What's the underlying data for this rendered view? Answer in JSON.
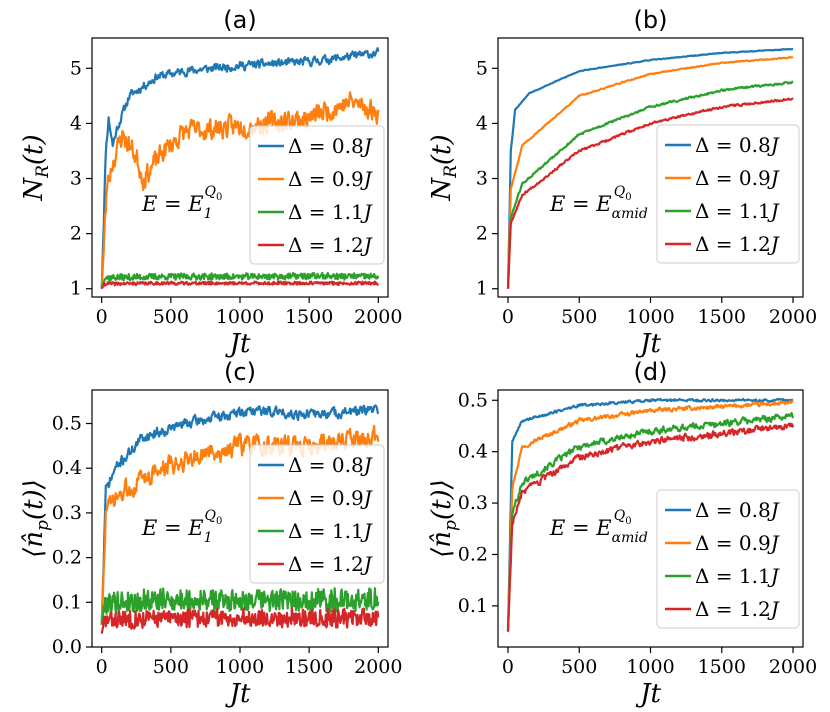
{
  "figure": {
    "panels": [
      "a",
      "b",
      "c",
      "d"
    ]
  },
  "chart_data": [
    {
      "id": "a",
      "type": "line",
      "title": "(a)",
      "xlabel": "Jt",
      "ylabel": "N_R(t)",
      "xlim": [
        -70,
        2070
      ],
      "ylim": [
        0.85,
        5.55
      ],
      "xticks": [
        0,
        500,
        1000,
        1500,
        2000
      ],
      "yticks": [
        1,
        2,
        3,
        4,
        5
      ],
      "annotation": {
        "base": "E = E",
        "sub": "1",
        "sup": "Q",
        "supsub": "0"
      },
      "legend_position": "right",
      "series": [
        {
          "name": "Δ = 0.8J",
          "color": "#1f77b4",
          "kind": "rise",
          "from": 1.0,
          "to": 5.3,
          "rate": 120,
          "noise": 0.12,
          "seed": 11,
          "points": [
            [
              0,
              1.0
            ],
            [
              30,
              3.5
            ],
            [
              50,
              4.1
            ],
            [
              80,
              3.6
            ],
            [
              110,
              3.9
            ],
            [
              200,
              4.5
            ],
            [
              400,
              4.85
            ],
            [
              600,
              4.95
            ],
            [
              1000,
              5.05
            ],
            [
              1500,
              5.12
            ],
            [
              2000,
              5.28
            ]
          ]
        },
        {
          "name": "Δ = 0.9J",
          "color": "#ff7f0e",
          "kind": "rise",
          "from": 1.0,
          "to": 4.2,
          "rate": 180,
          "noise": 0.3,
          "seed": 23,
          "points": [
            [
              0,
              1.0
            ],
            [
              40,
              2.9
            ],
            [
              80,
              3.3
            ],
            [
              150,
              3.8
            ],
            [
              250,
              3.4
            ],
            [
              300,
              3.0
            ],
            [
              450,
              3.5
            ],
            [
              600,
              3.85
            ],
            [
              1000,
              3.95
            ],
            [
              1500,
              4.1
            ],
            [
              1800,
              4.4
            ],
            [
              2000,
              4.2
            ]
          ]
        },
        {
          "name": "Δ = 1.1J",
          "color": "#2ca02c",
          "kind": "flat",
          "from": 1.0,
          "to": 1.22,
          "rate": 15,
          "noise": 0.05,
          "seed": 37,
          "points": [
            [
              0,
              1.0
            ],
            [
              20,
              1.2
            ],
            [
              500,
              1.22
            ],
            [
              1000,
              1.22
            ],
            [
              1500,
              1.23
            ],
            [
              2000,
              1.22
            ]
          ]
        },
        {
          "name": "Δ = 1.2J",
          "color": "#d62728",
          "kind": "flat",
          "from": 1.0,
          "to": 1.1,
          "rate": 15,
          "noise": 0.025,
          "seed": 41,
          "points": [
            [
              0,
              1.0
            ],
            [
              20,
              1.09
            ],
            [
              500,
              1.1
            ],
            [
              1000,
              1.1
            ],
            [
              1500,
              1.1
            ],
            [
              2000,
              1.1
            ]
          ]
        }
      ]
    },
    {
      "id": "b",
      "type": "line",
      "title": "(b)",
      "xlabel": "Jt",
      "ylabel": "N_R(t)",
      "xlim": [
        -70,
        2070
      ],
      "ylim": [
        0.85,
        5.55
      ],
      "xticks": [
        0,
        500,
        1000,
        1500,
        2000
      ],
      "yticks": [
        1,
        2,
        3,
        4,
        5
      ],
      "annotation": {
        "base": "E = E",
        "sub": "α_mid",
        "sup": "Q",
        "supsub": "0"
      },
      "legend_position": "right",
      "series": [
        {
          "name": "Δ = 0.8J",
          "color": "#1f77b4",
          "kind": "sqrt",
          "from": 1.0,
          "to": 5.35,
          "rate": 60,
          "noise": 0.01,
          "seed": 53,
          "points": [
            [
              0,
              1.0
            ],
            [
              20,
              3.5
            ],
            [
              50,
              4.25
            ],
            [
              150,
              4.55
            ],
            [
              500,
              4.95
            ],
            [
              1000,
              5.15
            ],
            [
              1500,
              5.28
            ],
            [
              2000,
              5.35
            ]
          ]
        },
        {
          "name": "Δ = 0.9J",
          "color": "#ff7f0e",
          "kind": "sqrt",
          "from": 1.0,
          "to": 5.2,
          "rate": 220,
          "noise": 0.015,
          "seed": 59,
          "points": [
            [
              0,
              1.0
            ],
            [
              20,
              2.8
            ],
            [
              100,
              3.6
            ],
            [
              500,
              4.5
            ],
            [
              1000,
              4.9
            ],
            [
              1500,
              5.1
            ],
            [
              2000,
              5.2
            ]
          ]
        },
        {
          "name": "Δ = 1.1J",
          "color": "#2ca02c",
          "kind": "sqrt",
          "from": 1.0,
          "to": 4.75,
          "rate": 600,
          "noise": 0.03,
          "seed": 61,
          "points": [
            [
              0,
              1.0
            ],
            [
              20,
              2.3
            ],
            [
              100,
              2.9
            ],
            [
              500,
              3.8
            ],
            [
              1000,
              4.3
            ],
            [
              1500,
              4.6
            ],
            [
              2000,
              4.75
            ]
          ]
        },
        {
          "name": "Δ = 1.2J",
          "color": "#d62728",
          "kind": "sqrt",
          "from": 1.0,
          "to": 4.45,
          "rate": 800,
          "noise": 0.03,
          "seed": 67,
          "points": [
            [
              0,
              1.0
            ],
            [
              20,
              2.2
            ],
            [
              100,
              2.7
            ],
            [
              500,
              3.5
            ],
            [
              1000,
              4.0
            ],
            [
              1500,
              4.3
            ],
            [
              2000,
              4.45
            ]
          ]
        }
      ]
    },
    {
      "id": "c",
      "type": "line",
      "title": "(c)",
      "xlabel": "Jt",
      "ylabel": "⟨n̂_p(t)⟩",
      "xlim": [
        -70,
        2070
      ],
      "ylim": [
        0.0,
        0.575
      ],
      "xticks": [
        0,
        500,
        1000,
        1500,
        2000
      ],
      "yticks": [
        0.0,
        0.1,
        0.2,
        0.3,
        0.4,
        0.5
      ],
      "annotation": {
        "base": "E = E",
        "sub": "1",
        "sup": "Q",
        "supsub": "0"
      },
      "legend_position": "right",
      "series": [
        {
          "name": "Δ = 0.8J",
          "color": "#1f77b4",
          "kind": "rise",
          "from": 0.05,
          "to": 0.53,
          "rate": 180,
          "noise": 0.018,
          "seed": 71,
          "points": [
            [
              0,
              0.05
            ],
            [
              30,
              0.35
            ],
            [
              100,
              0.4
            ],
            [
              300,
              0.47
            ],
            [
              600,
              0.5
            ],
            [
              1100,
              0.53
            ],
            [
              1500,
              0.52
            ],
            [
              2000,
              0.53
            ]
          ]
        },
        {
          "name": "Δ = 0.9J",
          "color": "#ff7f0e",
          "kind": "rise",
          "from": 0.05,
          "to": 0.48,
          "rate": 250,
          "noise": 0.035,
          "seed": 73,
          "points": [
            [
              0,
              0.05
            ],
            [
              30,
              0.3
            ],
            [
              100,
              0.33
            ],
            [
              300,
              0.38
            ],
            [
              600,
              0.42
            ],
            [
              1000,
              0.45
            ],
            [
              1500,
              0.45
            ],
            [
              2000,
              0.47
            ]
          ]
        },
        {
          "name": "Δ = 1.1J",
          "color": "#2ca02c",
          "kind": "flat",
          "from": 0.05,
          "to": 0.105,
          "rate": 10,
          "noise": 0.022,
          "seed": 79,
          "points": [
            [
              0,
              0.05
            ],
            [
              20,
              0.1
            ],
            [
              500,
              0.105
            ],
            [
              1000,
              0.105
            ],
            [
              1500,
              0.105
            ],
            [
              2000,
              0.105
            ]
          ]
        },
        {
          "name": "Δ = 1.2J",
          "color": "#d62728",
          "kind": "flat",
          "from": 0.03,
          "to": 0.065,
          "rate": 10,
          "noise": 0.018,
          "seed": 83,
          "points": [
            [
              0,
              0.03
            ],
            [
              20,
              0.06
            ],
            [
              500,
              0.065
            ],
            [
              1000,
              0.065
            ],
            [
              1500,
              0.065
            ],
            [
              2000,
              0.065
            ]
          ]
        }
      ]
    },
    {
      "id": "d",
      "type": "line",
      "title": "(d)",
      "xlabel": "Jt",
      "ylabel": "⟨n̂_p(t)⟩",
      "xlim": [
        -70,
        2070
      ],
      "ylim": [
        0.02,
        0.52
      ],
      "xticks": [
        0,
        500,
        1000,
        1500,
        2000
      ],
      "yticks": [
        0.1,
        0.2,
        0.3,
        0.4,
        0.5
      ],
      "annotation": {
        "base": "E = E",
        "sub": "α_mid",
        "sup": "Q",
        "supsub": "0"
      },
      "legend_position": "right",
      "series": [
        {
          "name": "Δ = 0.8J",
          "color": "#1f77b4",
          "kind": "sqrt",
          "from": 0.05,
          "to": 0.5,
          "rate": 40,
          "noise": 0.004,
          "seed": 89,
          "points": [
            [
              0,
              0.05
            ],
            [
              30,
              0.42
            ],
            [
              100,
              0.46
            ],
            [
              500,
              0.49
            ],
            [
              1000,
              0.5
            ],
            [
              2000,
              0.5
            ]
          ]
        },
        {
          "name": "Δ = 0.9J",
          "color": "#ff7f0e",
          "kind": "sqrt",
          "from": 0.05,
          "to": 0.495,
          "rate": 120,
          "noise": 0.006,
          "seed": 97,
          "points": [
            [
              0,
              0.05
            ],
            [
              30,
              0.33
            ],
            [
              100,
              0.41
            ],
            [
              500,
              0.46
            ],
            [
              1000,
              0.48
            ],
            [
              2000,
              0.495
            ]
          ]
        },
        {
          "name": "Δ = 1.1J",
          "color": "#2ca02c",
          "kind": "sqrt",
          "from": 0.05,
          "to": 0.47,
          "rate": 260,
          "noise": 0.01,
          "seed": 101,
          "points": [
            [
              0,
              0.05
            ],
            [
              30,
              0.28
            ],
            [
              100,
              0.34
            ],
            [
              500,
              0.41
            ],
            [
              1000,
              0.44
            ],
            [
              2000,
              0.47
            ]
          ]
        },
        {
          "name": "Δ = 1.2J",
          "color": "#d62728",
          "kind": "sqrt",
          "from": 0.05,
          "to": 0.45,
          "rate": 320,
          "noise": 0.01,
          "seed": 103,
          "points": [
            [
              0,
              0.05
            ],
            [
              30,
              0.26
            ],
            [
              100,
              0.32
            ],
            [
              500,
              0.39
            ],
            [
              1000,
              0.42
            ],
            [
              2000,
              0.45
            ]
          ]
        }
      ]
    }
  ]
}
